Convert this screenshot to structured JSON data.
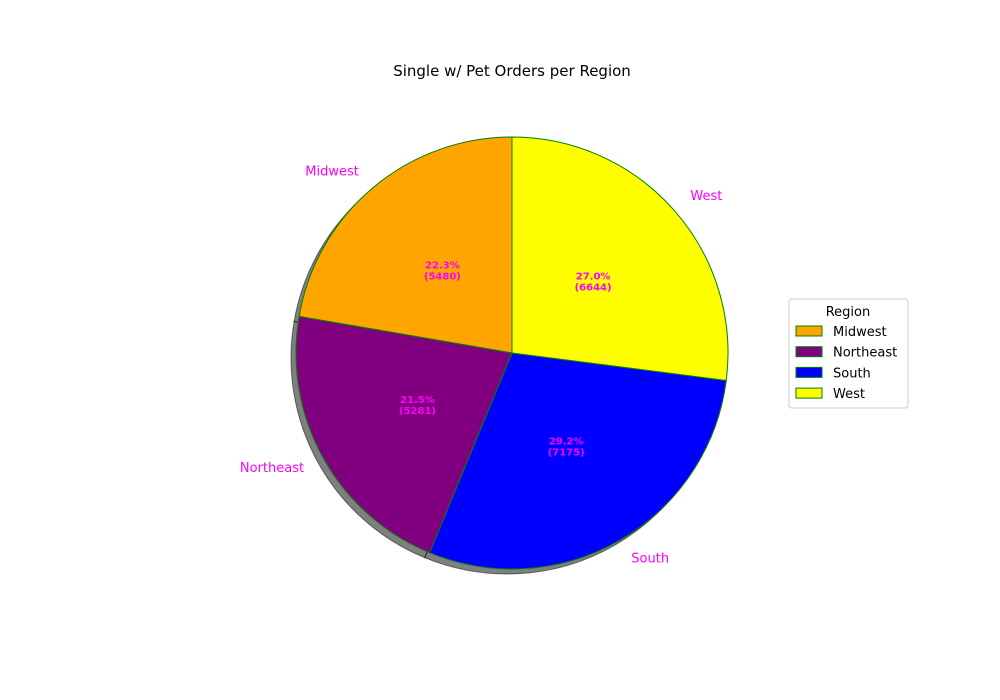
{
  "chart_data": {
    "type": "pie",
    "title": "Single w/ Pet Orders per Region",
    "categories": [
      "Midwest",
      "Northeast",
      "South",
      "West"
    ],
    "values": [
      5480,
      5281,
      7175,
      6644
    ],
    "percent_labels": [
      "22.3%",
      "21.5%",
      "29.2%",
      "27.0%"
    ],
    "value_labels": [
      "(5480)",
      "(5281)",
      "(7175)",
      "(6644)"
    ],
    "colors": [
      "#ffa500",
      "#800080",
      "#0000ff",
      "#ffff00"
    ],
    "edge_color": "#008000",
    "label_color": "#ff00ff",
    "shadow": true,
    "start_angle_deg": 90,
    "direction": "counterclockwise",
    "legend": {
      "title": "Region",
      "position": "right",
      "entries": [
        "Midwest",
        "Northeast",
        "South",
        "West"
      ]
    }
  }
}
